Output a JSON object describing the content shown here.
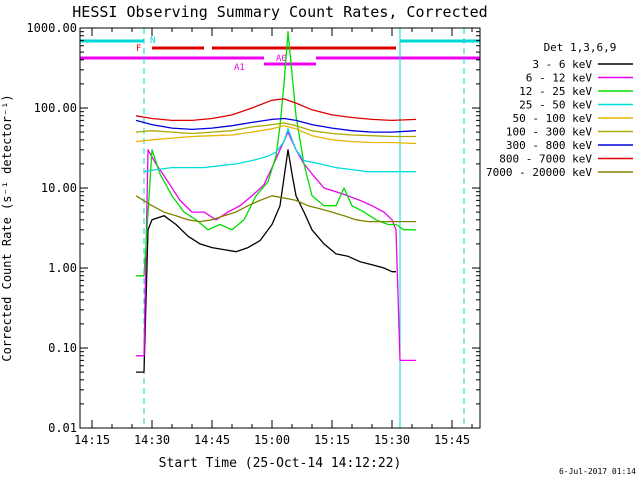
{
  "chart_data": {
    "type": "line",
    "title": "HESSI Observing Summary Count Rates, Corrected",
    "xlabel": "Start Time (25-Oct-14 14:12:22)",
    "ylabel": "Corrected Count Rate (s⁻¹ detector⁻¹)",
    "y_scale": "log",
    "ylim": [
      0.01,
      1000
    ],
    "xlim": [
      "14:12",
      "15:52"
    ],
    "x_ticks": [
      "14:15",
      "14:30",
      "14:45",
      "15:00",
      "15:15",
      "15:30",
      "15:45"
    ],
    "y_ticks": [
      "0.01",
      "0.10",
      "1.00",
      "10.00",
      "100.00",
      "1000.00"
    ],
    "legend_title": "Det 1,3,6,9",
    "legend_position": "right",
    "footer_date": "6-Jul-2017 01:14",
    "flag_labels": [
      "N",
      "F",
      "A0",
      "A1"
    ],
    "flag_colors": {
      "N": "#00d8d8",
      "F": "#dd0000",
      "A": "#ee00ee"
    },
    "vertical_markers": [
      "14:12",
      "14:28",
      "15:32",
      "15:48"
    ],
    "series": [
      {
        "name": "3 - 6 keV",
        "color": "#000000",
        "x": [
          "14:26",
          "14:27",
          "14:28",
          "14:29",
          "14:30",
          "14:33",
          "14:36",
          "14:39",
          "14:42",
          "14:45",
          "14:48",
          "14:51",
          "14:54",
          "14:57",
          "15:00",
          "15:02",
          "15:04",
          "15:05",
          "15:06",
          "15:08",
          "15:10",
          "15:13",
          "15:16",
          "15:19",
          "15:22",
          "15:25",
          "15:28",
          "15:30",
          "15:31"
        ],
        "y": [
          0.05,
          0.05,
          0.05,
          3,
          4,
          4.5,
          3.5,
          2.5,
          2,
          1.8,
          1.7,
          1.6,
          1.8,
          2.2,
          3.5,
          6,
          30,
          15,
          8,
          5,
          3,
          2,
          1.5,
          1.4,
          1.2,
          1.1,
          1.0,
          0.9,
          0.9
        ]
      },
      {
        "name": "6 - 12 keV",
        "color": "#ee00ee",
        "x": [
          "14:26",
          "14:27",
          "14:28",
          "14:29",
          "14:31",
          "14:34",
          "14:37",
          "14:40",
          "14:43",
          "14:46",
          "14:49",
          "14:52",
          "14:55",
          "14:58",
          "15:00",
          "15:02",
          "15:04",
          "15:06",
          "15:08",
          "15:10",
          "15:13",
          "15:16",
          "15:19",
          "15:22",
          "15:25",
          "15:28",
          "15:30",
          "15:31",
          "15:32",
          "15:33",
          "15:36"
        ],
        "y": [
          0.08,
          0.08,
          0.08,
          30,
          20,
          12,
          7,
          5,
          5,
          4,
          5,
          6,
          8,
          11,
          18,
          30,
          50,
          30,
          20,
          15,
          10,
          9,
          8,
          7,
          6,
          5,
          4,
          3,
          0.07,
          0.07,
          0.07
        ]
      },
      {
        "name": "12 - 25 keV",
        "color": "#00dd00",
        "x": [
          "14:26",
          "14:27",
          "14:28",
          "14:30",
          "14:32",
          "14:35",
          "14:38",
          "14:41",
          "14:44",
          "14:47",
          "14:50",
          "14:53",
          "14:56",
          "14:59",
          "15:01",
          "15:02",
          "15:03",
          "15:04",
          "15:06",
          "15:08",
          "15:10",
          "15:13",
          "15:16",
          "15:18",
          "15:20",
          "15:23",
          "15:26",
          "15:29",
          "15:31",
          "15:33",
          "15:36"
        ],
        "y": [
          0.8,
          0.8,
          0.8,
          30,
          15,
          8,
          5,
          4,
          3,
          3.5,
          3,
          4,
          8,
          12,
          25,
          60,
          200,
          900,
          80,
          20,
          8,
          6,
          6,
          10,
          6,
          5,
          4,
          3.5,
          3.5,
          3,
          3
        ]
      },
      {
        "name": "25 - 50 keV",
        "color": "#00dddd",
        "x": [
          "14:28",
          "14:31",
          "14:35",
          "14:39",
          "14:43",
          "14:47",
          "14:51",
          "14:55",
          "14:59",
          "15:01",
          "15:03",
          "15:04",
          "15:06",
          "15:08",
          "15:12",
          "15:16",
          "15:20",
          "15:24",
          "15:28",
          "15:32",
          "15:36"
        ],
        "y": [
          16,
          17,
          18,
          18,
          18,
          19,
          20,
          22,
          25,
          28,
          38,
          55,
          30,
          22,
          20,
          18,
          17,
          16,
          16,
          16,
          16
        ]
      },
      {
        "name": "50 - 100 keV",
        "color": "#e8b400",
        "x": [
          "14:26",
          "14:30",
          "14:35",
          "14:40",
          "14:45",
          "14:50",
          "14:55",
          "15:00",
          "15:03",
          "15:06",
          "15:10",
          "15:15",
          "15:20",
          "15:25",
          "15:30",
          "15:36"
        ],
        "y": [
          38,
          40,
          42,
          44,
          45,
          46,
          50,
          55,
          60,
          55,
          45,
          40,
          38,
          37,
          37,
          36
        ]
      },
      {
        "name": "100 - 300 keV",
        "color": "#aaaa00",
        "x": [
          "14:26",
          "14:30",
          "14:35",
          "14:40",
          "14:45",
          "14:50",
          "14:55",
          "15:00",
          "15:03",
          "15:06",
          "15:10",
          "15:15",
          "15:20",
          "15:25",
          "15:30",
          "15:36"
        ],
        "y": [
          50,
          52,
          50,
          48,
          50,
          52,
          58,
          62,
          65,
          60,
          52,
          48,
          46,
          45,
          44,
          44
        ]
      },
      {
        "name": "300 - 800 keV",
        "color": "#0000dd",
        "x": [
          "14:26",
          "14:30",
          "14:35",
          "14:40",
          "14:45",
          "14:50",
          "14:55",
          "15:00",
          "15:03",
          "15:06",
          "15:10",
          "15:15",
          "15:20",
          "15:25",
          "15:30",
          "15:36"
        ],
        "y": [
          70,
          62,
          56,
          54,
          56,
          60,
          66,
          72,
          74,
          70,
          62,
          56,
          52,
          50,
          50,
          52
        ]
      },
      {
        "name": "800 - 7000 keV",
        "color": "#dd0000",
        "x": [
          "14:26",
          "14:30",
          "14:35",
          "14:40",
          "14:45",
          "14:50",
          "14:55",
          "15:00",
          "15:03",
          "15:06",
          "15:10",
          "15:15",
          "15:20",
          "15:25",
          "15:30",
          "15:36"
        ],
        "y": [
          80,
          74,
          70,
          70,
          74,
          82,
          100,
          125,
          130,
          115,
          95,
          82,
          76,
          72,
          70,
          72
        ]
      },
      {
        "name": "7000 - 20000 keV",
        "color": "#808000",
        "x": [
          "14:26",
          "14:30",
          "14:33",
          "14:36",
          "14:39",
          "14:42",
          "14:45",
          "14:48",
          "14:51",
          "14:54",
          "14:57",
          "15:00",
          "15:03",
          "15:06",
          "15:09",
          "15:12",
          "15:15",
          "15:18",
          "15:21",
          "15:24",
          "15:27",
          "15:30",
          "15:33",
          "15:36"
        ],
        "y": [
          8,
          6,
          5,
          4.5,
          4,
          3.8,
          4,
          4.5,
          5,
          6,
          7,
          8,
          7.5,
          7,
          6,
          5.5,
          5,
          4.5,
          4,
          3.8,
          3.8,
          3.8,
          3.8,
          3.8
        ]
      }
    ]
  }
}
